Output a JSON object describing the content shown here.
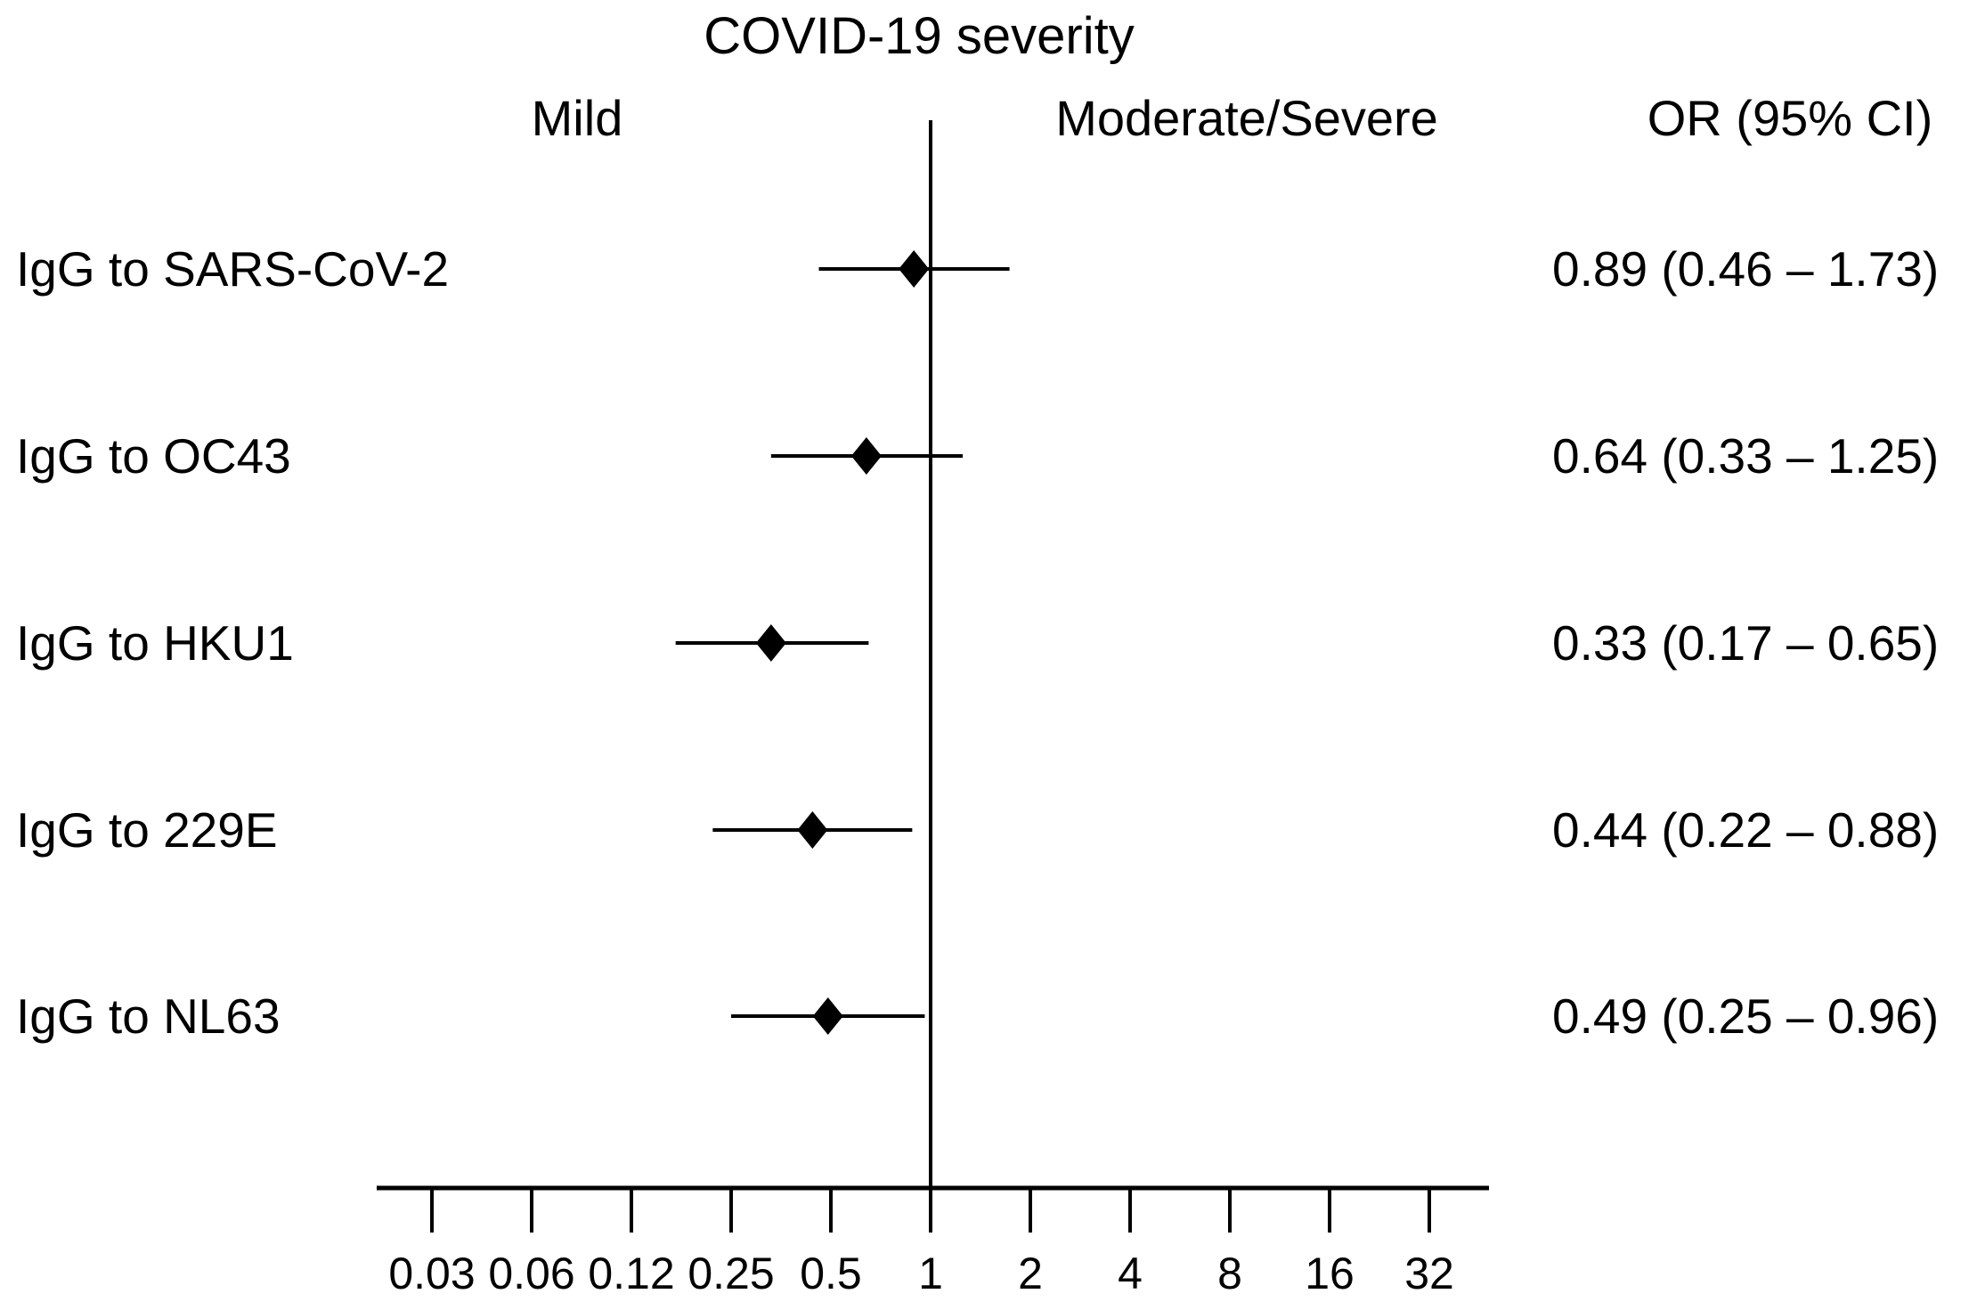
{
  "chart_data": {
    "type": "scatter",
    "variant": "forest-plot",
    "title": "COVID-19 severity",
    "column_headers": {
      "left_effect": "Mild",
      "right_effect": "Moderate/Severe",
      "estimates": "OR (95% CI)"
    },
    "x_scale": "log2",
    "x_tick_labels": [
      "0.03",
      "0.06",
      "0.12",
      "0.25",
      "0.5",
      "1",
      "2",
      "4",
      "8",
      "16",
      "32"
    ],
    "reference_line_value": 1,
    "marker": "diamond",
    "rows": [
      {
        "label": "IgG to SARS-CoV-2",
        "or": 0.89,
        "ci_low": 0.46,
        "ci_high": 1.73,
        "or_text": "0.89 (0.46 – 1.73)"
      },
      {
        "label": "IgG to OC43",
        "or": 0.64,
        "ci_low": 0.33,
        "ci_high": 1.25,
        "or_text": "0.64 (0.33 – 1.25)"
      },
      {
        "label": "IgG to HKU1",
        "or": 0.33,
        "ci_low": 0.17,
        "ci_high": 0.65,
        "or_text": "0.33 (0.17 – 0.65)"
      },
      {
        "label": "IgG to 229E",
        "or": 0.44,
        "ci_low": 0.22,
        "ci_high": 0.88,
        "or_text": "0.44 (0.22 – 0.88)"
      },
      {
        "label": "IgG to NL63",
        "or": 0.49,
        "ci_low": 0.25,
        "ci_high": 0.96,
        "or_text": "0.49 (0.25 – 0.96)"
      }
    ],
    "colors": {
      "foreground": "#000000",
      "background": "#ffffff"
    }
  }
}
